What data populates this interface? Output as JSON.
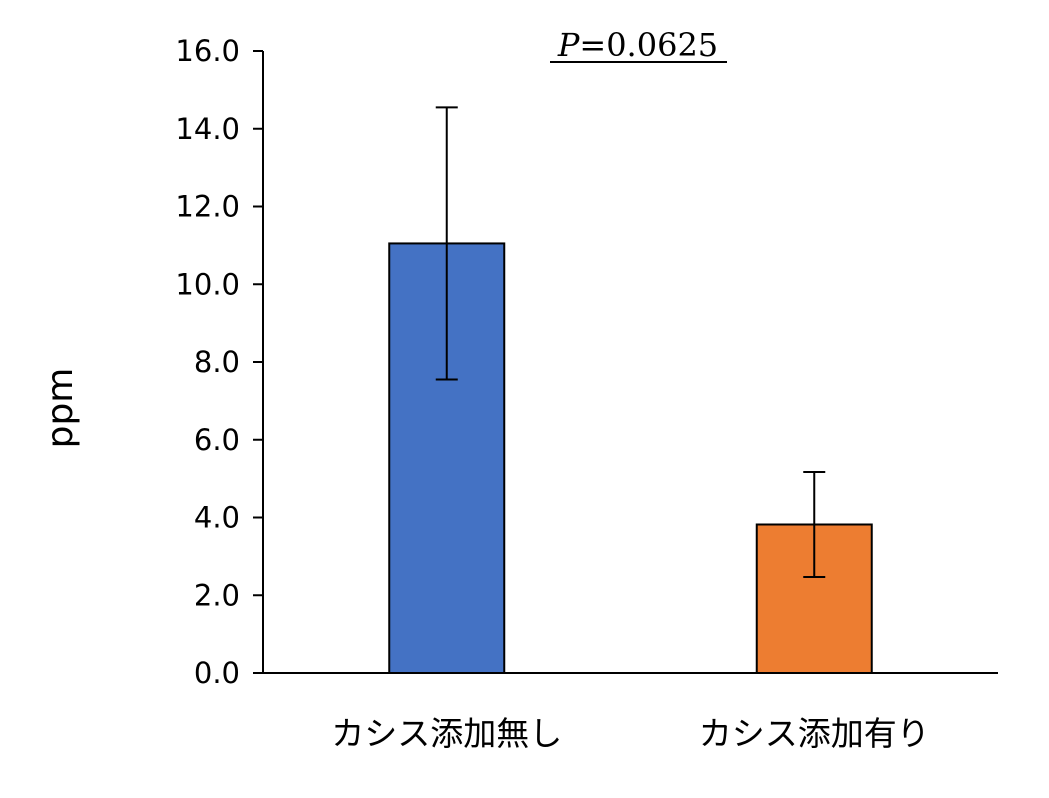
{
  "chart_data": {
    "type": "bar",
    "categories": [
      "カシス添加無し",
      "カシス添加有り"
    ],
    "values": [
      11.05,
      3.82
    ],
    "errors": [
      3.5,
      1.35
    ],
    "colors": [
      "#4472c4",
      "#ed7d31"
    ],
    "xlabel": "",
    "ylabel": "ppm",
    "ylim": [
      0,
      16
    ],
    "yticks": [
      "0.0",
      "2.0",
      "4.0",
      "6.0",
      "8.0",
      "10.0",
      "12.0",
      "14.0",
      "16.0"
    ],
    "grid": false,
    "legend": "none",
    "annotation": {
      "symbol": "P",
      "text": "=0.0625"
    }
  }
}
